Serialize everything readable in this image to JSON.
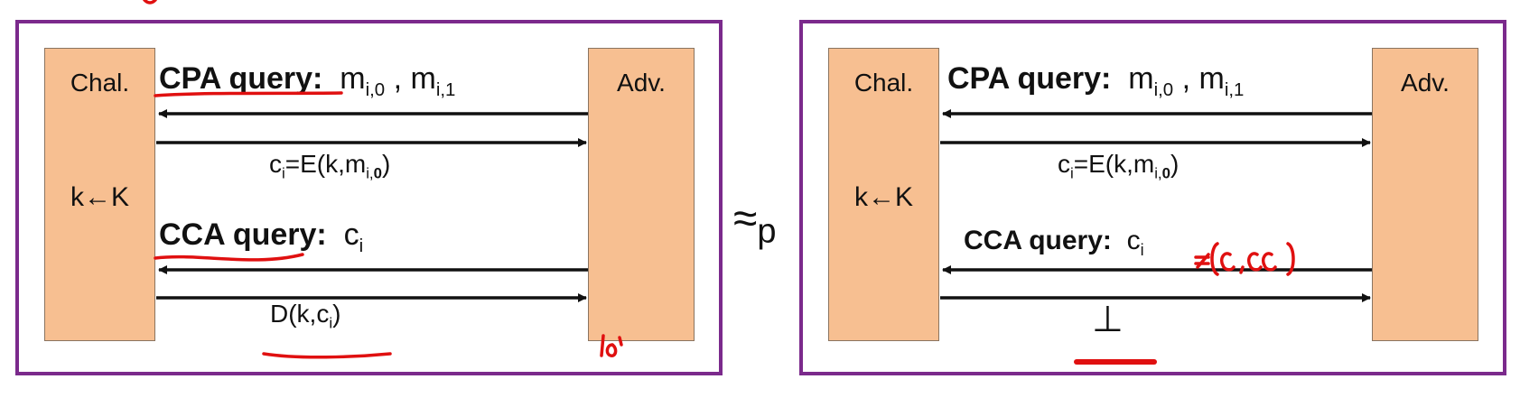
{
  "left": {
    "chal": "Chal.",
    "adv": "Adv.",
    "key": "k←K",
    "cpa_label": "CPA query:",
    "cpa_msg": "m",
    "cpa_sub0": "i,0",
    "cpa_sep": " , m",
    "cpa_sub1": "i,1",
    "ct_pre": "c",
    "ct_sub": "i",
    "ct_eq": "=E(k,m",
    "ct_sub2": "i,",
    "ct_bit": "0",
    "ct_close": ")",
    "cca_label": "CCA query:",
    "cca_c": "c",
    "cca_sub": "i",
    "dec_pre": "D(k,c",
    "dec_sub": "i",
    "dec_close": ")"
  },
  "right": {
    "chal": "Chal.",
    "adv": "Adv.",
    "key": "k←K",
    "cpa_label": "CPA query:",
    "cpa_msg": "m",
    "cpa_sub0": "i,0",
    "cpa_sep": " , m",
    "cpa_sub1": "i,1",
    "ct_pre": "c",
    "ct_sub": "i",
    "ct_eq": "=E(k,m",
    "ct_sub2": "i,",
    "ct_bit": "0",
    "ct_close": ")",
    "cca_label": "CCA query:",
    "cca_c": "c",
    "cca_sub": "i",
    "bottom": "⊥"
  },
  "approx": "≈",
  "approx_sub": "p",
  "colors": {
    "frame": "#7b2a8c",
    "box": "#f7bf91",
    "ink": "#e01010"
  }
}
